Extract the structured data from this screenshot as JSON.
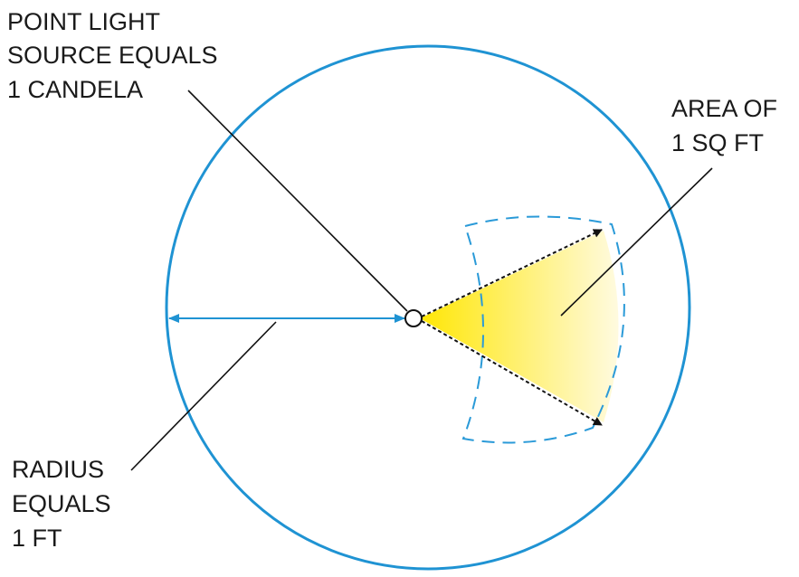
{
  "labels": {
    "point_light": [
      "POINT LIGHT",
      "SOURCE EQUALS",
      "1 CANDELA"
    ],
    "area": [
      "AREA OF",
      "1 SQ FT"
    ],
    "radius": [
      "RADIUS",
      "EQUALS",
      "1 FT"
    ]
  },
  "colors": {
    "circle": "#1f93d3",
    "patch_outline": "#2a9ad8",
    "radius_arrow": "#1f93d3",
    "leader_lines": "#111111",
    "cone_start": "#ffe600",
    "cone_end": "#fffbe6"
  }
}
